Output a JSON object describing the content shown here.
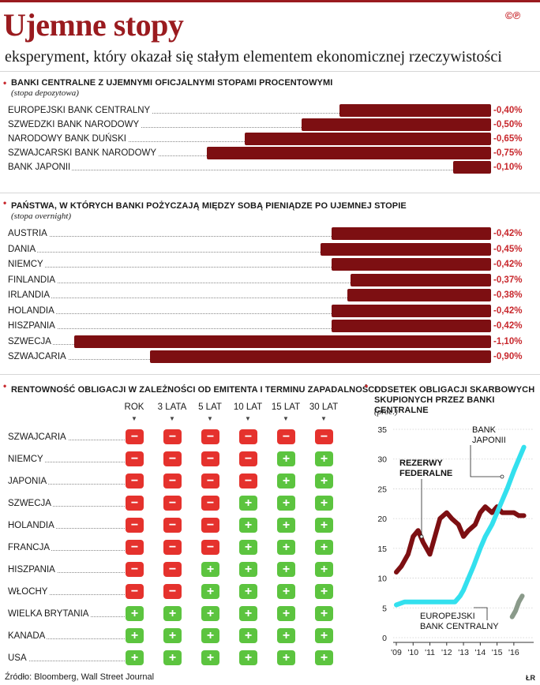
{
  "title": "Ujemne stopy",
  "logo": "©℗",
  "subtitle": "eksperyment, który okazał się stałym elementem ekonomicznej rzeczywistości",
  "source": "Źródło: Bloomberg, Wall Street Journal",
  "author": "ŁR",
  "colors": {
    "accent": "#9a1b1f",
    "bar": "#7d0f12",
    "value": "#c8282d",
    "negative": "#e5322d",
    "positive": "#5cc43f",
    "fed": "#7d0f12",
    "boj": "#33e0ee",
    "ecb": "#8a9a8a"
  },
  "chart_data": [
    {
      "type": "bar",
      "orientation": "horizontal",
      "title": "Banki centralne z ujemnymi oficjalnymi stopami procentowymi",
      "subtitle": "(stopa depozytowa)",
      "categories": [
        "EUROPEJSKI BANK CENTRALNY",
        "SZWEDZKI BANK NARODOWY",
        "NARODOWY BANK DUŃSKI",
        "SZWAJCARSKI BANK NARODOWY",
        "BANK JAPONII"
      ],
      "values": [
        -0.4,
        -0.5,
        -0.65,
        -0.75,
        -0.1
      ],
      "value_labels": [
        "-0,40%",
        "-0,50%",
        "-0,65%",
        "-0,75%",
        "-0,10%"
      ],
      "unit": "%"
    },
    {
      "type": "bar",
      "orientation": "horizontal",
      "title": "Państwa, w których banki pożyczają między sobą pieniądze po ujemnej stopie",
      "subtitle": "(stopa overnight)",
      "categories": [
        "AUSTRIA",
        "DANIA",
        "NIEMCY",
        "FINLANDIA",
        "IRLANDIA",
        "HOLANDIA",
        "HISZPANIA",
        "SZWECJA",
        "SZWAJCARIA"
      ],
      "values": [
        -0.42,
        -0.45,
        -0.42,
        -0.37,
        -0.38,
        -0.42,
        -0.42,
        -1.1,
        -0.9
      ],
      "value_labels": [
        "-0,42%",
        "-0,45%",
        "-0,42%",
        "-0,37%",
        "-0,38%",
        "-0,42%",
        "-0,42%",
        "-1,10%",
        "-0,90%"
      ],
      "unit": "%"
    },
    {
      "type": "table",
      "title": "Rentowność obligacji w zależności od emitenta i terminu zapadalności",
      "columns": [
        "ROK",
        "3 LATA",
        "5 LAT",
        "10 LAT",
        "15 LAT",
        "30 LAT"
      ],
      "rows": [
        "SZWAJCARIA",
        "NIEMCY",
        "JAPONIA",
        "SZWECJA",
        "HOLANDIA",
        "FRANCJA",
        "HISZPANIA",
        "WŁOCHY",
        "WIELKA BRYTANIA",
        "KANADA",
        "USA"
      ],
      "signs": [
        [
          "-",
          "-",
          "-",
          "-",
          "-",
          "-"
        ],
        [
          "-",
          "-",
          "-",
          "-",
          "+",
          "+"
        ],
        [
          "-",
          "-",
          "-",
          "-",
          "+",
          "+"
        ],
        [
          "-",
          "-",
          "-",
          "+",
          "+",
          "+"
        ],
        [
          "-",
          "-",
          "-",
          "+",
          "+",
          "+"
        ],
        [
          "-",
          "-",
          "-",
          "+",
          "+",
          "+"
        ],
        [
          "-",
          "-",
          "+",
          "+",
          "+",
          "+"
        ],
        [
          "-",
          "-",
          "+",
          "+",
          "+",
          "+"
        ],
        [
          "+",
          "+",
          "+",
          "+",
          "+",
          "+"
        ],
        [
          "+",
          "+",
          "+",
          "+",
          "+",
          "+"
        ],
        [
          "+",
          "+",
          "+",
          "+",
          "+",
          "+"
        ]
      ]
    },
    {
      "type": "line",
      "title": "Odsetek obligacji skarbowych skupionych przez banki centralne",
      "subtitle": "(proc.)",
      "x_ticks": [
        "'09",
        "'10",
        "'11",
        "'12",
        "'13",
        "'14",
        "'15",
        "'16"
      ],
      "y_ticks": [
        0,
        5,
        10,
        15,
        20,
        25,
        30,
        35
      ],
      "ylim": [
        0,
        35
      ],
      "xlim": [
        2009.0,
        2016.9
      ],
      "series": [
        {
          "name": "REZERWY FEDERALNE",
          "label_lines": [
            "REZERWY",
            "FEDERALNE"
          ],
          "x": [
            2009.0,
            2009.3,
            2009.7,
            2010.0,
            2010.3,
            2010.6,
            2011.0,
            2011.3,
            2011.6,
            2012.0,
            2012.3,
            2012.7,
            2013.0,
            2013.3,
            2013.7,
            2014.0,
            2014.3,
            2014.7,
            2015.0,
            2015.3,
            2015.7,
            2016.0,
            2016.3,
            2016.6
          ],
          "y": [
            11,
            12,
            14,
            17,
            18,
            16,
            14,
            17,
            20,
            21,
            20,
            19,
            17,
            18,
            19,
            21,
            22,
            21,
            22,
            21,
            21,
            21,
            20.5,
            20.5
          ]
        },
        {
          "name": "BANK JAPONII",
          "label_lines": [
            "BANK",
            "JAPONII"
          ],
          "x": [
            2009.0,
            2009.5,
            2010.0,
            2010.5,
            2011.0,
            2011.5,
            2012.0,
            2012.5,
            2012.8,
            2013.0,
            2013.3,
            2013.6,
            2014.0,
            2014.3,
            2014.7,
            2015.0,
            2015.3,
            2015.6,
            2016.0,
            2016.3,
            2016.6
          ],
          "y": [
            5.5,
            6,
            6,
            6,
            6,
            6,
            6,
            6,
            7,
            8,
            10,
            12,
            15,
            17,
            19,
            21,
            23,
            25,
            28,
            30,
            32
          ]
        },
        {
          "name": "EUROPEJSKI BANK CENTRALNY",
          "label_lines": [
            "EUROPEJSKI",
            "BANK CENTRALNY"
          ],
          "x": [
            2015.9,
            2016.1,
            2016.3,
            2016.5
          ],
          "y": [
            3.5,
            4.5,
            6,
            7
          ]
        }
      ]
    }
  ]
}
